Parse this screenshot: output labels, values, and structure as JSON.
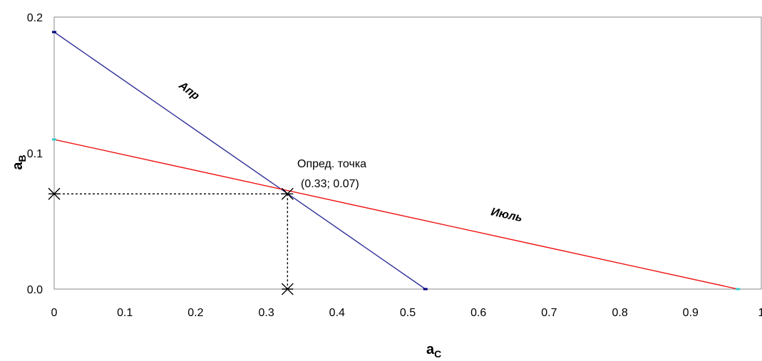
{
  "chart_data": {
    "type": "line",
    "title": "",
    "xlabel": {
      "main": "a",
      "sub": "C"
    },
    "ylabel": {
      "main": "a",
      "sub": "B"
    },
    "xlim": [
      0,
      1
    ],
    "ylim": [
      0,
      0.2
    ],
    "x_ticks": [
      "0",
      "0.1",
      "0.2",
      "0.3",
      "0.4",
      "0.5",
      "0.6",
      "0.7",
      "0.8",
      "0.9",
      "1"
    ],
    "y_ticks": [
      "0.0",
      "0.1",
      "0.2"
    ],
    "grid": false,
    "series": [
      {
        "name": "Апр",
        "color": "#2e2e99",
        "points": [
          [
            0,
            0.189
          ],
          [
            0.525,
            0.0
          ]
        ]
      },
      {
        "name": "Июль",
        "color": "#ee1111",
        "points": [
          [
            0,
            0.11
          ],
          [
            0.967,
            0.0
          ]
        ]
      }
    ],
    "intersection": {
      "x": 0.33,
      "y": 0.07,
      "label_line1": "Опред. точка",
      "label_line2": "(0.33; 0.07)"
    },
    "endpoint_marker_colors": [
      "#000080",
      "#33cccc"
    ]
  }
}
